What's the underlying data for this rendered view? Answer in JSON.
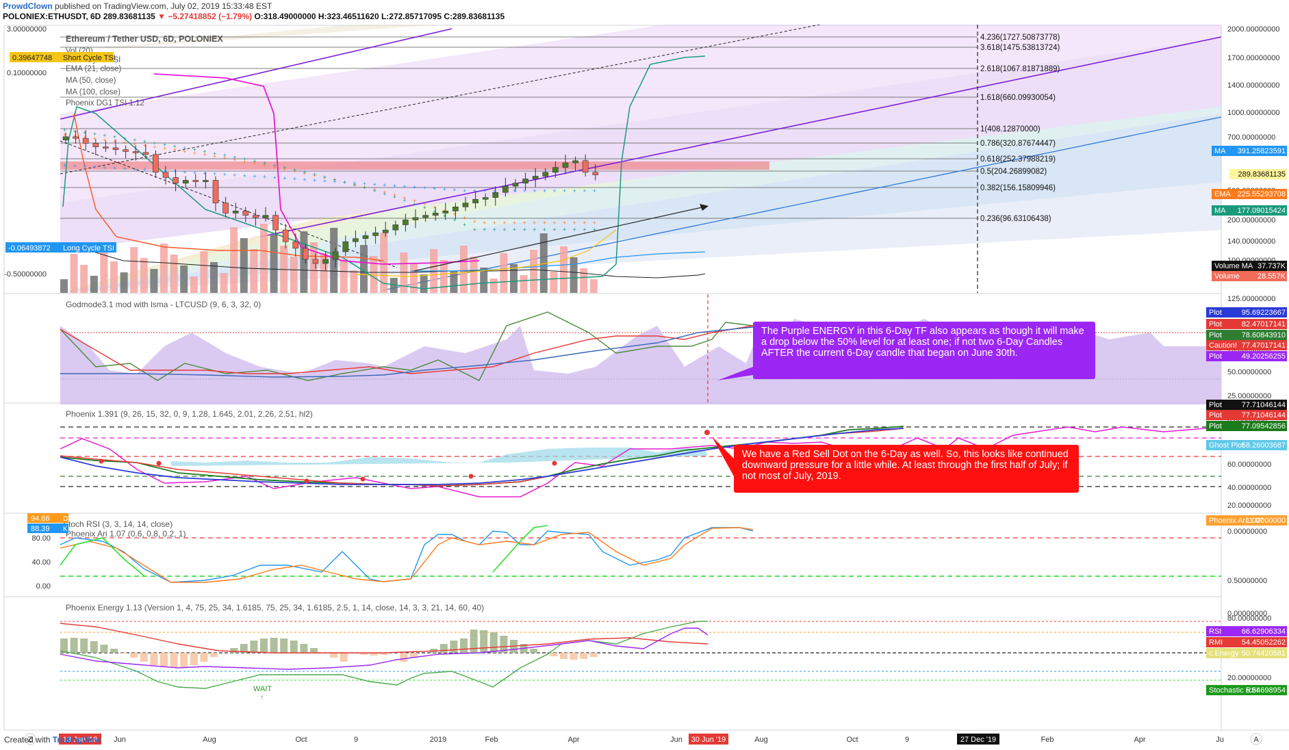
{
  "header": {
    "author": "ProwdClown",
    "published": "published on TradingView.com, July 02, 2019 15:33:48 EST",
    "symbol": "POLONIEX:ETHUSDT, 6D",
    "price": "289.83681135",
    "change": "▼ −5.27418852 (−1.79%)",
    "ohlc": "O:318.49000000 H:323.46511620 L:272.85717095 C:289.83681135"
  },
  "footer": {
    "created": "Created with",
    "brand": "TradingView"
  },
  "colors": {
    "up": "#4a7a2a",
    "down": "#f26b5b",
    "ma_blue": "#2196f3",
    "ema_orange": "#ff7a1a",
    "purple": "#9c27f5",
    "teal": "#1a9a7a",
    "magenta": "#e81ad1"
  },
  "chart_data": [
    {
      "type": "candlestick",
      "title": "Ethereum / Tether USD, 6D, POLONIEX",
      "legend": [
        "Vol (20)",
        "Short Cycle TSI",
        "EMA (21, close)",
        "MA (50, close)",
        "MA (100, close)",
        "Phoenix DG1 TSI 1.12",
        "Long Cycle TSI"
      ],
      "y_ticks": [
        "2000.00000000",
        "1700.00000000",
        "1400.00000000",
        "1000.00000000",
        "700.00000000",
        "500.00000000",
        "200.00000000",
        "140.00000000",
        "100.00000000",
        "80.00000000"
      ],
      "left_ticks": [
        "3.00000000",
        "0.10000000",
        "-0.50000000"
      ],
      "left_labels": {
        "short_cycle": "0.39647748",
        "long_cycle": "-0.06493872"
      },
      "fib_levels": [
        {
          "label": "4.236(1727.50873778)"
        },
        {
          "label": "3.618(1475.53813724)"
        },
        {
          "label": "2.618(1067.81871889)"
        },
        {
          "label": "1.618(660.09930054)"
        },
        {
          "label": "1(408.12870000)"
        },
        {
          "label": "0.786(320.87674447)"
        },
        {
          "label": "0.618(252.37988219)"
        },
        {
          "label": "0.5(204.26899082)"
        },
        {
          "label": "0.382(156.15809946)"
        },
        {
          "label": "0.236(96.63106438)"
        }
      ],
      "price_labels": [
        {
          "name": "MA",
          "value": "391.25823591"
        },
        {
          "name": "",
          "value": "289.83681135"
        },
        {
          "name": "EMA",
          "value": "225.55293708"
        },
        {
          "name": "MA",
          "value": "177.09015424"
        },
        {
          "name": "Volume MA",
          "value": "37.737K"
        },
        {
          "name": "Volume",
          "value": "28.557K"
        }
      ],
      "candles_close": [
        480,
        470,
        440,
        420,
        415,
        405,
        395,
        390,
        380,
        300,
        280,
        260,
        270,
        265,
        270,
        200,
        175,
        180,
        170,
        165,
        170,
        140,
        120,
        110,
        95,
        90,
        95,
        105,
        120,
        125,
        130,
        135,
        140,
        150,
        160,
        165,
        170,
        175,
        180,
        190,
        200,
        210,
        215,
        230,
        250,
        260,
        275,
        285,
        300,
        320,
        340,
        350,
        300,
        290
      ]
    },
    {
      "type": "line",
      "title": "Godmode3.1 mod with lsma - LTCUSD (9, 6, 3, 32, 0)",
      "y_ticks": [
        "125.00000000",
        "100.00000000",
        "75.00000000",
        "50.00000000",
        "25.00000000",
        "0.00000000"
      ],
      "ylim": [
        0,
        125
      ],
      "labels": [
        {
          "name": "Plot",
          "value": "95.69223667"
        },
        {
          "name": "Plot",
          "value": "82.47017141"
        },
        {
          "name": "Plot",
          "value": "78.60843910"
        },
        {
          "name": "Caution!",
          "value": "77.47017141"
        },
        {
          "name": "Plot",
          "value": "49.20256255"
        }
      ]
    },
    {
      "type": "line",
      "title": "Phoenix 1.391 (9, 26, 15, 32, 0, 9, 1.28, 1.645, 2.01, 2.26, 2.51, hl2)",
      "y_ticks": [
        "60.00000000",
        "40.00000000",
        "20.00000000",
        "0.00000000"
      ],
      "ylim": [
        0,
        85
      ],
      "labels": [
        {
          "name": "Plot",
          "value": "77.71046144"
        },
        {
          "name": "Plot",
          "value": "77.71046144"
        },
        {
          "name": "Plot",
          "value": "77.09542856"
        },
        {
          "name": "Ghost Plot",
          "value": "58.26003687"
        }
      ]
    },
    {
      "type": "line",
      "title": "Stoch RSI (3, 3, 14, 14, close)",
      "subtitle": "Phoenix Ari 1.07 (0.6, 0.8, 0.2, 1)",
      "left_ticks": [
        "80.00",
        "40.00",
        "0.00"
      ],
      "left_labels": {
        "D": "94.66",
        "K": "88.39"
      },
      "y_ticks": [
        "0.50000000",
        "0.00000000"
      ],
      "labels": [
        {
          "name": "Phoenix Ari 1.07",
          "value": "1.00000000"
        }
      ]
    },
    {
      "type": "line",
      "title": "Phoenix Energy 1.13 (Version 1, 4, 75, 25, 34, 1.6185, 75, 25, 34, 1.6185, 2.5, 1, 14, close, 14, 3, 3, 21, 14, 60, 40)",
      "annotation": "WAIT",
      "y_ticks": [
        "80.00000000",
        "20.00000000"
      ],
      "labels": [
        {
          "name": "RSI",
          "value": "66.62906334"
        },
        {
          "name": "RMI",
          "value": "54.45052262"
        },
        {
          "name": "c.Energy",
          "value": "50.74420581"
        },
        {
          "name": "Stochastic RSI",
          "value": "5.64698954"
        }
      ]
    }
  ],
  "time_axis": {
    "labels": [
      "Jun",
      "Aug",
      "Oct",
      "9",
      "2019",
      "Feb",
      "Apr",
      "Jun",
      "Aug",
      "Oct",
      "9",
      "Feb",
      "Apr",
      "Ju"
    ],
    "start_badge": "13 Jan '18",
    "current_badge": "30 Jun '19",
    "future_badge": "27 Dec '19"
  },
  "notes": {
    "purple": "The Purple ENERGY in this 6-Day TF also appears as though it will make a drop below the 50% level for at least one; if not two 6-Day Candles AFTER the current 6-Day candle that began on June 30th.",
    "red": "We have a Red Sell Dot on the 6-Day as well.  So, this looks like continued downward pressure for a little while.  At least through the first half of July; if not most of July, 2019."
  }
}
